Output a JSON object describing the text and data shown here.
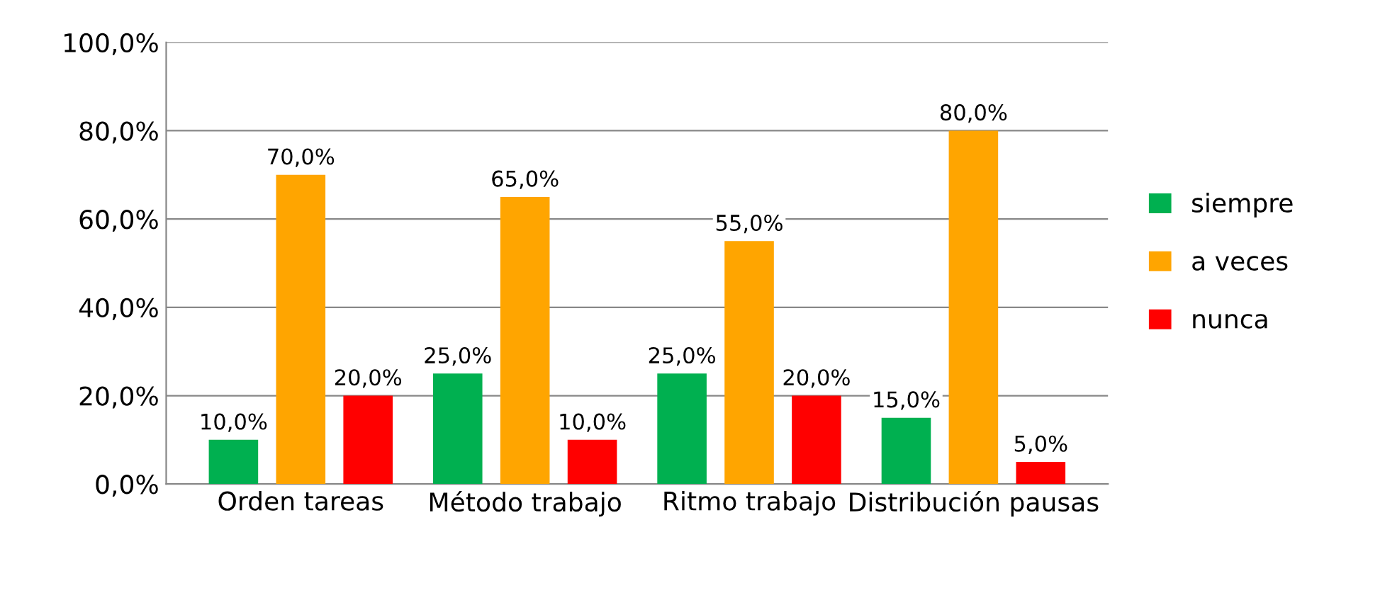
{
  "chart_data": {
    "type": "bar",
    "categories": [
      "Orden tareas",
      "Método trabajo",
      "Ritmo trabajo",
      "Distribución pausas"
    ],
    "series": [
      {
        "name": "siempre",
        "color": "#00b050",
        "values": [
          10,
          25,
          25,
          15
        ],
        "value_labels": [
          "10,0%",
          "25,0%",
          "25,0%",
          "15,0%"
        ]
      },
      {
        "name": "a veces",
        "color": "#ffa500",
        "values": [
          70,
          65,
          55,
          80
        ],
        "value_labels": [
          "70,0%",
          "65,0%",
          "55,0%",
          "80,0%"
        ]
      },
      {
        "name": "nunca",
        "color": "#ff0000",
        "values": [
          20,
          10,
          20,
          5
        ],
        "value_labels": [
          "20,0%",
          "10,0%",
          "20,0%",
          "5,0%"
        ]
      }
    ],
    "ylim": [
      0,
      100
    ],
    "yticks": [
      {
        "value": 0,
        "label": "0,0%"
      },
      {
        "value": 20,
        "label": "20,0%"
      },
      {
        "value": 40,
        "label": "40,0%"
      },
      {
        "value": 60,
        "label": "60,0%"
      },
      {
        "value": 80,
        "label": "80,0%"
      },
      {
        "value": 100,
        "label": "100,0%"
      }
    ],
    "grid": "y",
    "legend": "right"
  }
}
